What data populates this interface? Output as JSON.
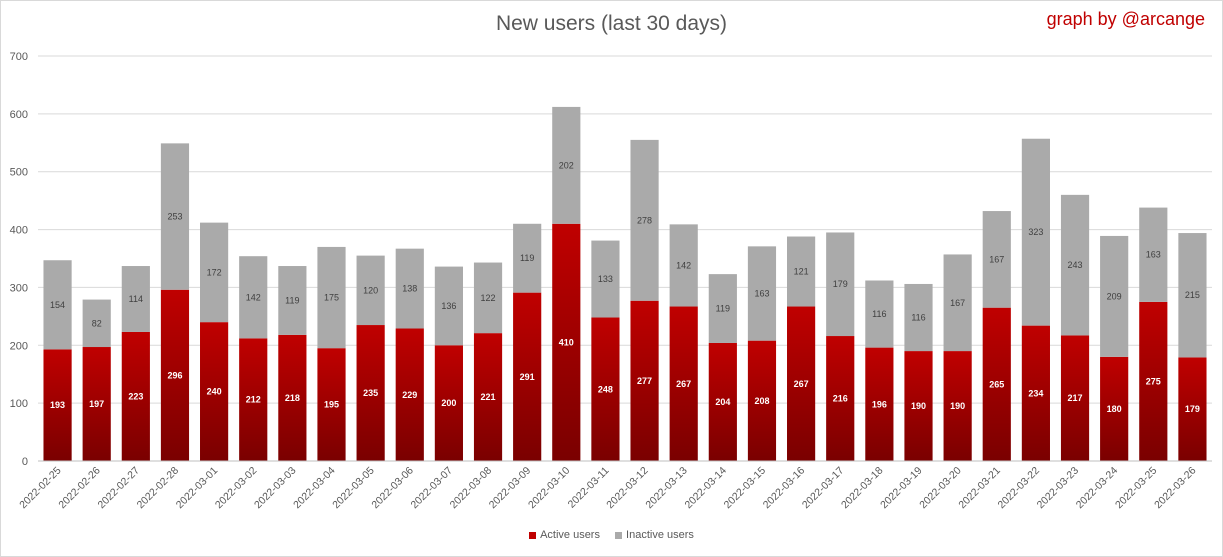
{
  "title": "New users (last 30 days)",
  "credit": "graph by @arcange",
  "colors": {
    "active": "#c00000",
    "active_dark": "#7a0000",
    "inactive": "#aaaaaa",
    "grid": "#d9d9d9",
    "axis_text": "#595959"
  },
  "chart_data": {
    "type": "bar",
    "stacked": true,
    "categories": [
      "2022-02-25",
      "2022-02-26",
      "2022-02-27",
      "2022-02-28",
      "2022-03-01",
      "2022-03-02",
      "2022-03-03",
      "2022-03-04",
      "2022-03-05",
      "2022-03-06",
      "2022-03-07",
      "2022-03-08",
      "2022-03-09",
      "2022-03-10",
      "2022-03-11",
      "2022-03-12",
      "2022-03-13",
      "2022-03-14",
      "2022-03-15",
      "2022-03-16",
      "2022-03-17",
      "2022-03-18",
      "2022-03-19",
      "2022-03-20",
      "2022-03-21",
      "2022-03-22",
      "2022-03-23",
      "2022-03-24",
      "2022-03-25",
      "2022-03-26"
    ],
    "series": [
      {
        "name": "Active users",
        "values": [
          193,
          197,
          223,
          296,
          240,
          212,
          218,
          195,
          235,
          229,
          200,
          221,
          291,
          410,
          248,
          277,
          267,
          204,
          208,
          267,
          216,
          196,
          190,
          190,
          265,
          234,
          217,
          180,
          275,
          179
        ]
      },
      {
        "name": "Inactive users",
        "values": [
          154,
          82,
          114,
          253,
          172,
          142,
          119,
          175,
          120,
          138,
          136,
          122,
          119,
          202,
          133,
          278,
          142,
          119,
          163,
          121,
          179,
          116,
          116,
          167,
          167,
          323,
          243,
          209,
          163,
          215
        ]
      }
    ],
    "ylim": [
      0,
      700
    ],
    "yticks": [
      0,
      100,
      200,
      300,
      400,
      500,
      600,
      700
    ],
    "grid": true,
    "legend_position": "bottom"
  }
}
